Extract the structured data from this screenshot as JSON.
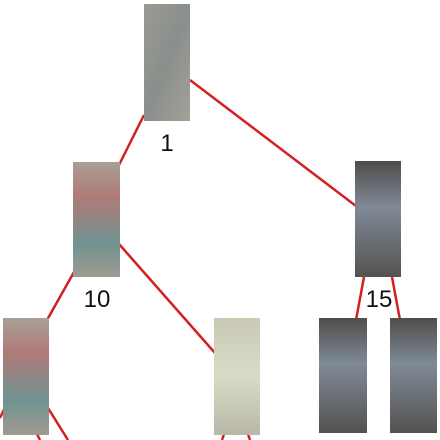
{
  "nodes": [
    {
      "label": "1"
    },
    {
      "label": "10"
    },
    {
      "label": "15"
    }
  ]
}
